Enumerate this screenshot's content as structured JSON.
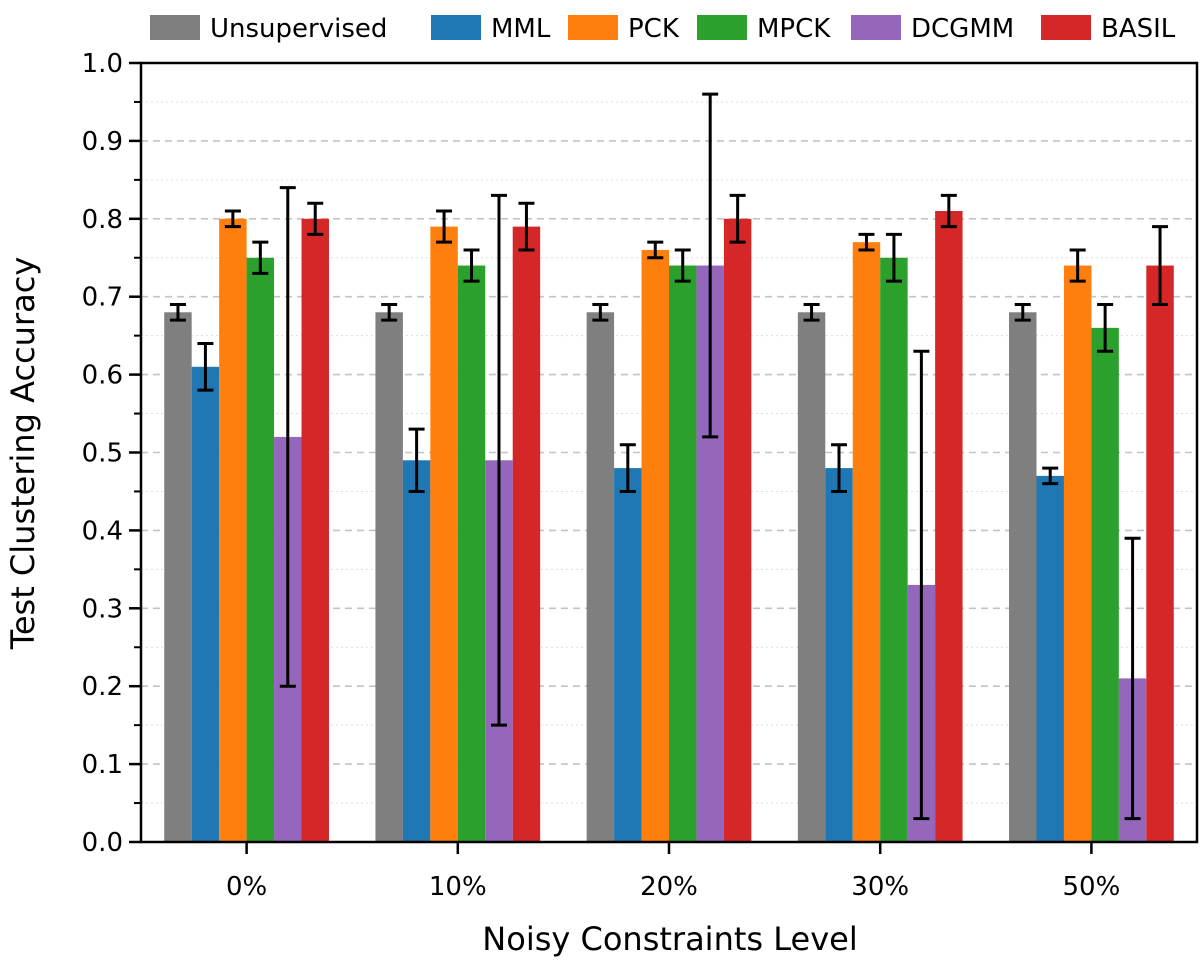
{
  "chart_data": {
    "type": "bar",
    "title": "",
    "xlabel": "Noisy Constraints Level",
    "ylabel": "Test Clustering Accuracy",
    "ylim": [
      0.0,
      1.0
    ],
    "yticks": [
      "0.0",
      "0.1",
      "0.2",
      "0.3",
      "0.4",
      "0.5",
      "0.6",
      "0.7",
      "0.8",
      "0.9",
      "1.0"
    ],
    "categories": [
      "0%",
      "10%",
      "20%",
      "30%",
      "50%"
    ],
    "grid": "horizontal dashed major, dotted minor",
    "legend_position": "top",
    "series": [
      {
        "name": "Unsupervised",
        "color": "#7f7f7f",
        "values": [
          0.68,
          0.68,
          0.68,
          0.68,
          0.68
        ],
        "err_low": [
          0.67,
          0.67,
          0.67,
          0.67,
          0.67
        ],
        "err_high": [
          0.69,
          0.69,
          0.69,
          0.69,
          0.69
        ]
      },
      {
        "name": "MML",
        "color": "#1f77b4",
        "values": [
          0.61,
          0.49,
          0.48,
          0.48,
          0.47
        ],
        "err_low": [
          0.58,
          0.45,
          0.45,
          0.45,
          0.46
        ],
        "err_high": [
          0.64,
          0.53,
          0.51,
          0.51,
          0.48
        ]
      },
      {
        "name": "PCK",
        "color": "#ff7f0e",
        "values": [
          0.8,
          0.79,
          0.76,
          0.77,
          0.74
        ],
        "err_low": [
          0.79,
          0.77,
          0.75,
          0.76,
          0.72
        ],
        "err_high": [
          0.81,
          0.81,
          0.77,
          0.78,
          0.76
        ]
      },
      {
        "name": "MPCK",
        "color": "#2ca02c",
        "values": [
          0.75,
          0.74,
          0.74,
          0.75,
          0.66
        ],
        "err_low": [
          0.73,
          0.72,
          0.72,
          0.72,
          0.63
        ],
        "err_high": [
          0.77,
          0.76,
          0.76,
          0.78,
          0.69
        ]
      },
      {
        "name": "DCGMM",
        "color": "#9467bd",
        "values": [
          0.52,
          0.49,
          0.74,
          0.33,
          0.21
        ],
        "err_low": [
          0.2,
          0.15,
          0.52,
          0.03,
          0.03
        ],
        "err_high": [
          0.84,
          0.83,
          0.96,
          0.63,
          0.39
        ]
      },
      {
        "name": "BASIL",
        "color": "#d62728",
        "values": [
          0.8,
          0.79,
          0.8,
          0.81,
          0.74
        ],
        "err_low": [
          0.78,
          0.76,
          0.77,
          0.79,
          0.69
        ],
        "err_high": [
          0.82,
          0.82,
          0.83,
          0.83,
          0.79
        ]
      }
    ]
  }
}
